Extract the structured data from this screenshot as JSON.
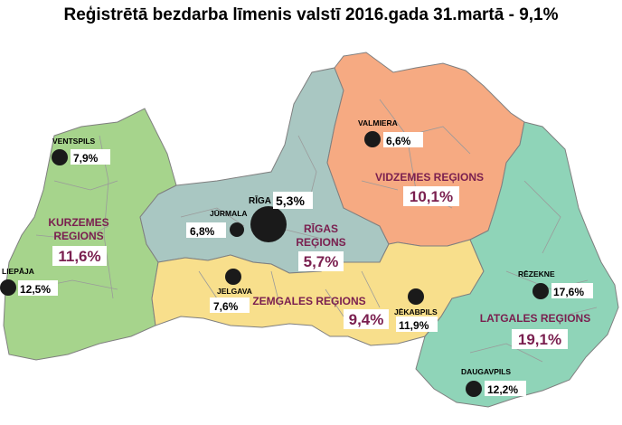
{
  "title": "Reģistrētā bezdarba līmenis valstī 2016.gada 31.martā - 9,1%",
  "colors": {
    "kurzeme": "#a6d48c",
    "riga": "#a9c7c2",
    "vidzeme": "#f6aa82",
    "zemgale": "#f8df8c",
    "latgale": "#8fd4b8",
    "label": "#7a1f4f",
    "city_dot": "#1a1a1a"
  },
  "regions": [
    {
      "id": "kurzeme",
      "name_line1": "KURZEMES",
      "name_line2": "REGIONS",
      "value": "11,6%"
    },
    {
      "id": "riga",
      "name_line1": "RĪGAS",
      "name_line2": "REĢIONS",
      "value": "5,7%"
    },
    {
      "id": "vidzeme",
      "name_line1": "VIDZEMES REĢIONS",
      "name_line2": "",
      "value": "10,1%"
    },
    {
      "id": "zemgale",
      "name_line1": "ZEMGALES REĢIONS",
      "name_line2": "",
      "value": "9,4%"
    },
    {
      "id": "latgale",
      "name_line1": "LATGALES REĢIONS",
      "name_line2": "",
      "value": "19,1%"
    }
  ],
  "cities": [
    {
      "id": "ventspils",
      "name": "VENTSPILS",
      "value": "7,9%"
    },
    {
      "id": "liepaja",
      "name": "LIEPĀJA",
      "value": "12,5%"
    },
    {
      "id": "jurmala",
      "name": "JŪRMALA",
      "value": "6,8%"
    },
    {
      "id": "riga",
      "name": "RĪGA",
      "value": "5,3%"
    },
    {
      "id": "jelgava",
      "name": "JELGAVA",
      "value": "7,6%"
    },
    {
      "id": "valmiera",
      "name": "VALMIERA",
      "value": "6,6%"
    },
    {
      "id": "jekabpils",
      "name": "JĒKABPILS",
      "value": "11,9%"
    },
    {
      "id": "rezekne",
      "name": "RĒZEKNE",
      "value": "17,6%"
    },
    {
      "id": "daugavpils",
      "name": "DAUGAVPILS",
      "value": "12,2%"
    }
  ]
}
